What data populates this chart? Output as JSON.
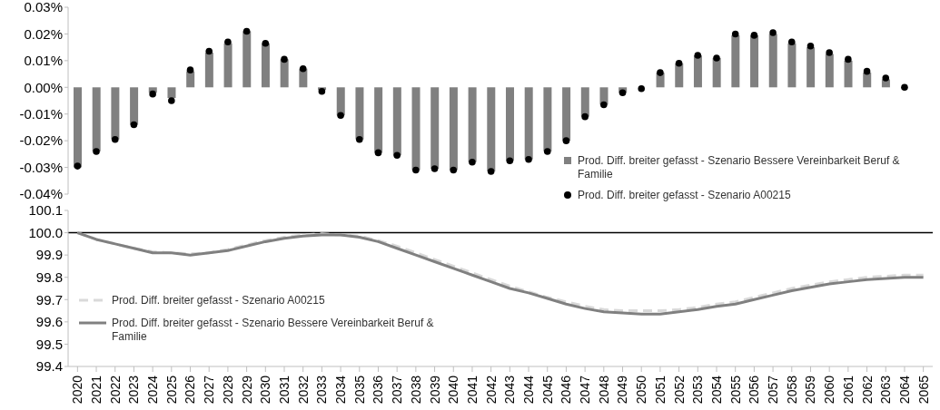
{
  "chart_data": [
    {
      "type": "bar",
      "categories": [
        "2020",
        "2021",
        "2022",
        "2023",
        "2024",
        "2025",
        "2026",
        "2027",
        "2028",
        "2029",
        "2030",
        "2031",
        "2032",
        "2033",
        "2034",
        "2035",
        "2036",
        "2037",
        "2038",
        "2039",
        "2040",
        "2041",
        "2042",
        "2043",
        "2044",
        "2045",
        "2046",
        "2047",
        "2048",
        "2049",
        "2050",
        "2051",
        "2052",
        "2053",
        "2054",
        "2055",
        "2056",
        "2057",
        "2058",
        "2059",
        "2060",
        "2061",
        "2062",
        "2063",
        "2064",
        "2065"
      ],
      "series": [
        {
          "name": "Prod. Diff. breiter gefasst - Szenario Bessere Vereinbarkeit Beruf & Familie",
          "type": "bar",
          "color": "#808080",
          "values": [
            -0.03,
            -0.024,
            -0.0195,
            -0.014,
            -0.002,
            -0.004,
            0.006,
            0.013,
            0.0165,
            0.021,
            0.0165,
            0.0105,
            0.007,
            -0.001,
            -0.0105,
            -0.0195,
            -0.0245,
            -0.0255,
            -0.031,
            -0.0305,
            -0.031,
            -0.028,
            -0.0315,
            -0.0275,
            -0.027,
            -0.024,
            -0.02,
            -0.011,
            -0.0065,
            -0.002,
            null,
            0.0055,
            0.009,
            0.012,
            0.011,
            0.0195,
            0.0195,
            0.02,
            0.0165,
            0.015,
            0.0125,
            0.01,
            0.0055,
            0.003,
            0.0,
            null
          ]
        },
        {
          "name": "Prod. Diff. breiter gefasst - Szenario A00215",
          "type": "scatter",
          "color": "#000000",
          "values": [
            -0.0295,
            -0.024,
            -0.0195,
            -0.014,
            -0.0025,
            -0.005,
            0.0065,
            0.0135,
            0.017,
            0.021,
            0.0165,
            0.0105,
            0.007,
            -0.0015,
            -0.0105,
            -0.0195,
            -0.0245,
            -0.0255,
            -0.031,
            -0.0305,
            -0.031,
            -0.028,
            -0.0315,
            -0.0275,
            -0.027,
            -0.024,
            -0.02,
            -0.011,
            -0.0065,
            -0.002,
            -0.0005,
            0.0055,
            0.009,
            0.012,
            0.011,
            0.02,
            0.0195,
            0.0205,
            0.017,
            0.0155,
            0.013,
            0.0105,
            0.006,
            0.0035,
            0.0,
            null
          ]
        }
      ],
      "ylim": [
        -0.04,
        0.03
      ],
      "yticks": [
        {
          "value": -0.04,
          "label": "-0.04%"
        },
        {
          "value": -0.03,
          "label": "-0.03%"
        },
        {
          "value": -0.02,
          "label": "-0.02%"
        },
        {
          "value": -0.01,
          "label": "-0.01%"
        },
        {
          "value": 0,
          "label": "0.00%"
        },
        {
          "value": 0.01,
          "label": "0.01%"
        },
        {
          "value": 0.02,
          "label": "0.02%"
        },
        {
          "value": 0.03,
          "label": "0.03%"
        }
      ],
      "marker": "circle",
      "grid": false,
      "legend": "bottom right",
      "tick_labels": "y"
    },
    {
      "type": "line",
      "categories": [
        "2020",
        "2021",
        "2022",
        "2023",
        "2024",
        "2025",
        "2026",
        "2027",
        "2028",
        "2029",
        "2030",
        "2031",
        "2032",
        "2033",
        "2034",
        "2035",
        "2036",
        "2037",
        "2038",
        "2039",
        "2040",
        "2041",
        "2042",
        "2043",
        "2044",
        "2045",
        "2046",
        "2047",
        "2048",
        "2049",
        "2050",
        "2051",
        "2052",
        "2053",
        "2054",
        "2055",
        "2056",
        "2057",
        "2058",
        "2059",
        "2060",
        "2061",
        "2062",
        "2063",
        "2064",
        "2065"
      ],
      "series": [
        {
          "name": "Prod. Diff. breiter gefasst - Szenario A00215",
          "color": "#d9d9d9",
          "line_style": "dashed",
          "values": [
            100.0,
            99.97,
            99.95,
            99.93,
            99.915,
            99.91,
            99.905,
            99.91,
            99.925,
            99.945,
            99.965,
            99.98,
            99.99,
            99.995,
            99.99,
            99.985,
            99.965,
            99.94,
            99.91,
            99.88,
            99.85,
            99.82,
            99.79,
            99.76,
            99.735,
            99.71,
            99.69,
            99.67,
            99.655,
            99.65,
            99.65,
            99.65,
            99.655,
            99.665,
            99.68,
            99.69,
            99.71,
            99.73,
            99.75,
            99.765,
            99.78,
            99.79,
            99.8,
            99.805,
            99.81,
            99.81
          ]
        },
        {
          "name": "Prod. Diff. breiter gefasst - Szenario Bessere Vereinbarkeit Beruf & Familie",
          "color": "#808080",
          "line_style": "solid",
          "values": [
            100.0,
            99.97,
            99.95,
            99.93,
            99.91,
            99.91,
            99.9,
            99.91,
            99.92,
            99.94,
            99.96,
            99.975,
            99.985,
            99.99,
            99.99,
            99.98,
            99.96,
            99.93,
            99.9,
            99.87,
            99.84,
            99.81,
            99.78,
            99.75,
            99.73,
            99.705,
            99.68,
            99.66,
            99.645,
            99.64,
            99.635,
            99.635,
            99.645,
            99.655,
            99.67,
            99.68,
            99.7,
            99.72,
            99.74,
            99.755,
            99.77,
            99.78,
            99.79,
            99.795,
            99.8,
            99.8
          ]
        }
      ],
      "ylim": [
        99.4,
        100.1
      ],
      "yticks": [
        99.4,
        99.5,
        99.6,
        99.7,
        99.8,
        99.9,
        {
          "value": 100,
          "label": "100.0"
        },
        100.1
      ],
      "ref_lines": [
        {
          "axis": "y",
          "value": 100,
          "color": "#000000"
        }
      ],
      "marker": "none",
      "grid": false,
      "legend": "bottom left"
    }
  ]
}
